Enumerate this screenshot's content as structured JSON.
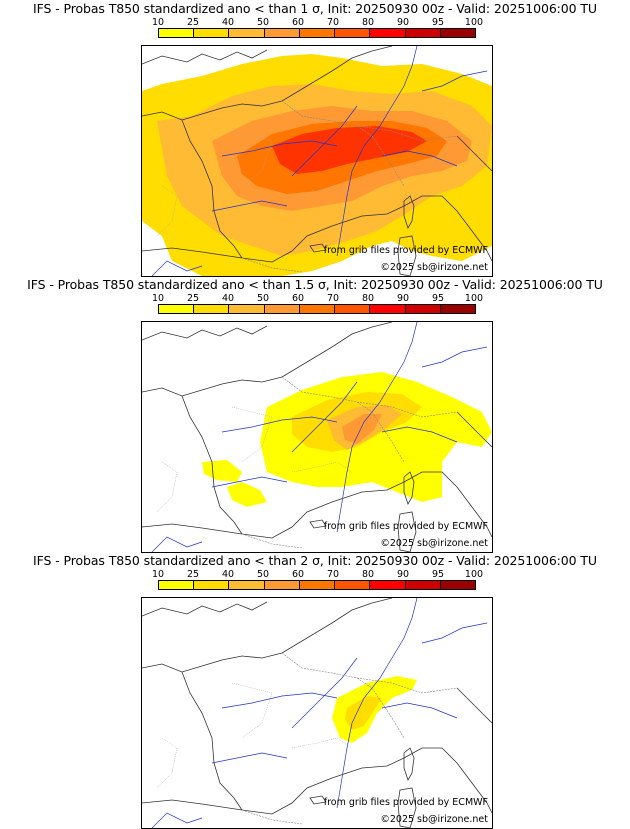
{
  "colorbar": {
    "labels": [
      "10",
      "25",
      "40",
      "50",
      "60",
      "70",
      "80",
      "90",
      "95",
      "100"
    ],
    "colors": [
      "#ffff00",
      "#ffdd00",
      "#ffbb33",
      "#ff9933",
      "#ff7700",
      "#ff5500",
      "#ff0000",
      "#cc0000",
      "#990000",
      "#550000"
    ]
  },
  "panels": [
    {
      "title": "IFS - Probas T850  standardized ano < than 1 σ, Init: 20250930 00z - Valid: 20251006:00 TU",
      "source_credit": "from grib files provided by ECMWF",
      "copyright": "©2025 sb@irizone.net"
    },
    {
      "title": "IFS - Probas T850  standardized ano < than 1.5 σ, Init: 20250930 00z - Valid: 20251006:00 TU",
      "source_credit": "from grib files provided by ECMWF",
      "copyright": "©2025 sb@irizone.net"
    },
    {
      "title": "IFS - Probas T850  standardized ano < than 2 σ, Init: 20250930 00z - Valid: 20251006:00 TU",
      "source_credit": "from grib files provided by ECMWF",
      "copyright": "©2025 sb@irizone.net"
    }
  ]
}
